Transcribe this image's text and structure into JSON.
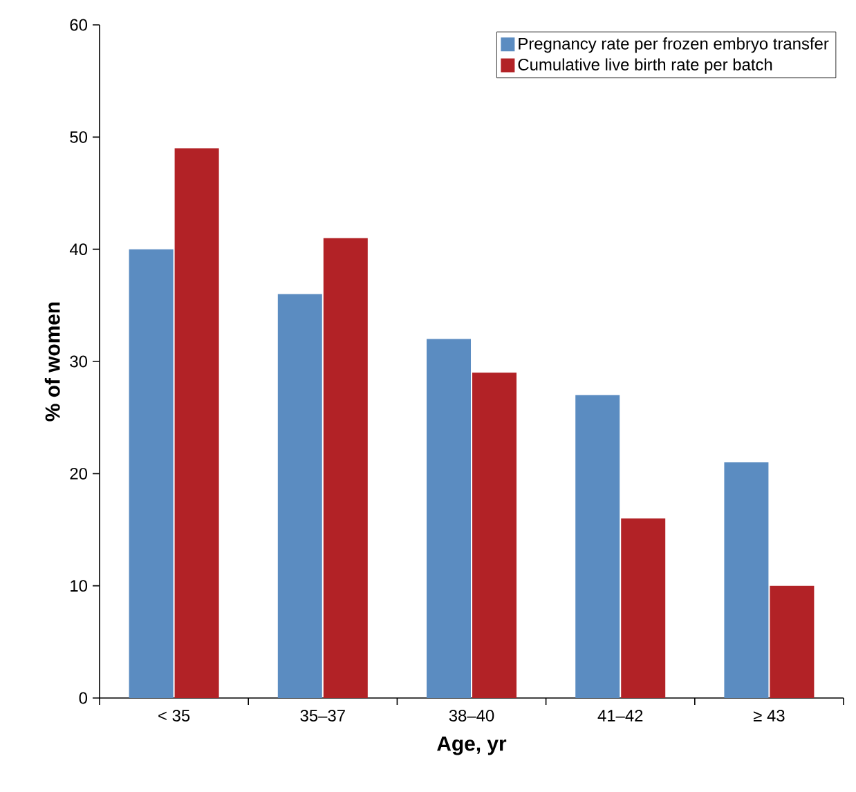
{
  "chart_data": {
    "type": "bar",
    "xlabel": "Age, yr",
    "ylabel": "% of women",
    "categories": [
      "< 35",
      "35–37",
      "38–40",
      "41–42",
      "≥ 43"
    ],
    "series": [
      {
        "name": "Pregnancy rate per frozen embryo transfer",
        "color": "#5b8cc1",
        "values": [
          40,
          36,
          32,
          27,
          21
        ]
      },
      {
        "name": "Cumulative live birth rate per batch",
        "color": "#b22226",
        "values": [
          49,
          41,
          29,
          16,
          10
        ]
      }
    ],
    "ylim": [
      0,
      60
    ],
    "yticks": [
      0,
      10,
      20,
      30,
      40,
      50,
      60
    ],
    "legend": "top right",
    "grid": false
  }
}
